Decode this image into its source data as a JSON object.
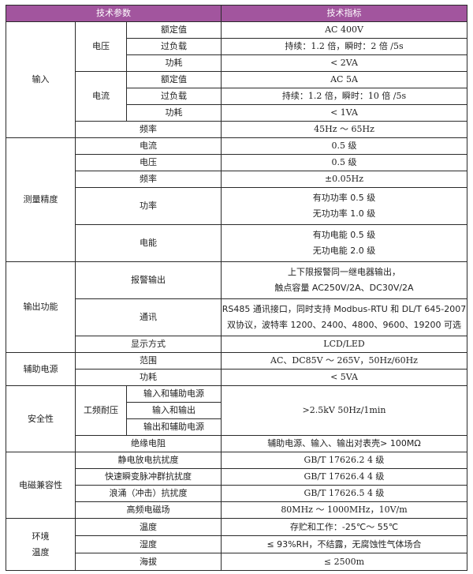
{
  "header": {
    "param": "技术参数",
    "spec": "技术指标",
    "color": "#a2559e"
  },
  "input": {
    "label": "输入",
    "voltage": {
      "label": "电压",
      "rated": "额定值",
      "rated_v": "AC 400V",
      "overload": "过负载",
      "overload_v": "持续：1.2 倍，瞬时：2 倍 /5s",
      "power": "功耗",
      "power_v": "< 2VA"
    },
    "current": {
      "label": "电流",
      "rated": "额定值",
      "rated_v": "AC 5A",
      "overload": "过负载",
      "overload_v": "持续：1.2 倍，瞬时：10 倍 /5s",
      "power": "功耗",
      "power_v": "< 1VA"
    },
    "freq": "频率",
    "freq_v": "45Hz ～ 65Hz"
  },
  "accuracy": {
    "label": "测量精度",
    "current": "电流",
    "current_v": "0.5 级",
    "voltage": "电压",
    "voltage_v": "0.5 级",
    "freq": "频率",
    "freq_v": "±0.05Hz",
    "power": "功率",
    "power_v1": "有功功率 0.5 级",
    "power_v2": "无功功率 1.0 级",
    "energy": "电能",
    "energy_v1": "有功电能 0.5 级",
    "energy_v2": "无功电能 2.0 级"
  },
  "output": {
    "label": "输出功能",
    "alarm": "报警输出",
    "alarm_v1": "上下限报警同一继电器输出，",
    "alarm_v2": "触点容量 AC250V/2A、DC30V/2A",
    "comm": "通讯",
    "comm_v1": "RS485 通讯接口，同时支持 Modbus-RTU 和 DL/T 645-2007",
    "comm_v2": "双协议，波特率 1200、2400、4800、9600、19200 可选",
    "display": "显示方式",
    "display_v": "LCD/LED"
  },
  "aux": {
    "label": "辅助电源",
    "range": "范围",
    "range_v": "AC、DC85V ～ 265V，50Hz/60Hz",
    "power": "功耗",
    "power_v": "< 5VA"
  },
  "safety": {
    "label": "安全性",
    "withstand": "工频耐压",
    "w1": "输入和辅助电源",
    "w2": "输入和输出",
    "w3": "输出和辅助电源",
    "withstand_v": ">2.5kV 50Hz/1min",
    "insulation": "绝缘电阻",
    "insulation_v": "辅助电源、输入、输出对表壳> 100MΩ"
  },
  "emc": {
    "label": "电磁兼容性",
    "esd": "静电放电抗扰度",
    "esd_v": "GB/T 17626.2 4 级",
    "eft": "快速瞬变脉冲群抗扰度",
    "eft_v": "GB/T 17626.4 4 级",
    "surge": "浪涌（冲击）抗扰度",
    "surge_v": "GB/T 17626.5 4 级",
    "rf": "高频电磁场",
    "rf_v": "80MHz ～ 1000MHz，10V/m"
  },
  "env": {
    "label1": "环境",
    "label2": "温度",
    "temp": "温度",
    "temp_v": "存贮和工作：-25℃～ 55℃",
    "humidity": "湿度",
    "humidity_v": "≤ 93%RH，不结露，无腐蚀性气体场合",
    "altitude": "海拔",
    "altitude_v": "≤ 2500m"
  }
}
